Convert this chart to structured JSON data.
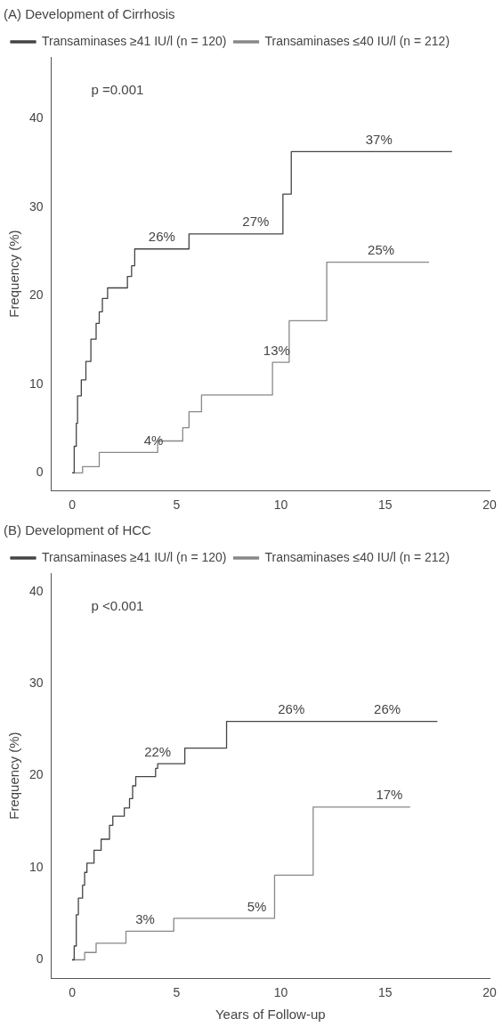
{
  "chart_data": [
    {
      "type": "step",
      "title": "(A) Development of Cirrhosis",
      "ylabel": "Frequency (%)",
      "xlim": [
        -1,
        20
      ],
      "xticks": [
        0,
        5,
        10,
        15,
        20
      ],
      "ylim": [
        -2,
        47
      ],
      "yticks": [
        0,
        10,
        20,
        30,
        40
      ],
      "legend": "top left",
      "series": [
        {
          "name": "Transaminases ≥41 IU/l (n = 120)",
          "color": "#444444",
          "x": [
            0,
            0.1,
            0.2,
            0.26,
            0.44,
            0.66,
            0.9,
            1.15,
            1.3,
            1.45,
            1.7,
            2.65,
            2.85,
            3.0,
            5.6,
            10.1,
            10.5,
            18.2
          ],
          "values": [
            0,
            3,
            5.6,
            8.7,
            10.5,
            12.6,
            15.1,
            16.9,
            18.2,
            19.7,
            20.9,
            22.2,
            23.4,
            25.3,
            27.0,
            31.5,
            36.3,
            36.3
          ]
        },
        {
          "name": "Transaminases ≤40 IU/l (n = 212)",
          "color": "#888888",
          "x": [
            0,
            0.5,
            1.3,
            4.1,
            5.3,
            5.6,
            6.2,
            9.6,
            10.4,
            12.2,
            17.1
          ],
          "values": [
            0,
            0.7,
            2.3,
            3.6,
            5.1,
            6.9,
            8.8,
            12.5,
            17.2,
            23.8,
            23.8
          ]
        }
      ],
      "annotations": [
        "p =0.001",
        {
          "text": "26%",
          "x": 4.3,
          "y": 25.3
        },
        {
          "text": "27%",
          "x": 8.8,
          "y": 27.0
        },
        {
          "text": "37%",
          "x": 14.7,
          "y": 36.3
        },
        {
          "text": "25%",
          "x": 14.8,
          "y": 23.8
        },
        {
          "text": "13%",
          "x": 9.8,
          "y": 12.5
        },
        {
          "text": "4%",
          "x": 3.9,
          "y": 2.3
        }
      ]
    },
    {
      "type": "step",
      "title": "(B) Development of HCC",
      "ylabel": "Frequency (%)",
      "xlabel": "Years of Follow-up",
      "xlim": [
        -1,
        20
      ],
      "xticks": [
        0,
        5,
        10,
        15,
        20
      ],
      "ylim": [
        -2,
        42
      ],
      "yticks": [
        0,
        10,
        20,
        30,
        40
      ],
      "legend": "top left",
      "series": [
        {
          "name": "Transaminases ≥41 IU/l (n = 120)",
          "color": "#444444",
          "x": [
            0,
            0.1,
            0.2,
            0.3,
            0.5,
            0.6,
            0.71,
            1.05,
            1.39,
            1.79,
            1.95,
            2.5,
            2.75,
            2.9,
            3.05,
            4.0,
            4.1,
            5.4,
            7.4,
            17.5
          ],
          "values": [
            0,
            1.5,
            4.9,
            6.7,
            8.1,
            9.5,
            10.5,
            11.9,
            13.1,
            14.6,
            15.6,
            16.5,
            17.5,
            18.9,
            19.9,
            20.8,
            21.3,
            23.0,
            25.9,
            25.9
          ]
        },
        {
          "name": "Transaminases ≤40 IU/l (n = 212)",
          "color": "#888888",
          "x": [
            0,
            0.6,
            1.15,
            2.58,
            4.87,
            9.7,
            11.55,
            16.2
          ],
          "values": [
            0,
            0.8,
            1.8,
            3.1,
            4.5,
            9.2,
            16.6,
            16.6
          ]
        }
      ],
      "annotations": [
        "p <0.001",
        {
          "text": "22%",
          "x": 4.1,
          "y": 21.3
        },
        {
          "text": "26%",
          "x": 10.5,
          "y": 25.9
        },
        {
          "text": "26%",
          "x": 15.1,
          "y": 25.9
        },
        {
          "text": "17%",
          "x": 15.2,
          "y": 16.6
        },
        {
          "text": "3%",
          "x": 3.5,
          "y": 3.1
        },
        {
          "text": "5%",
          "x": 8.85,
          "y": 4.5
        }
      ]
    }
  ]
}
